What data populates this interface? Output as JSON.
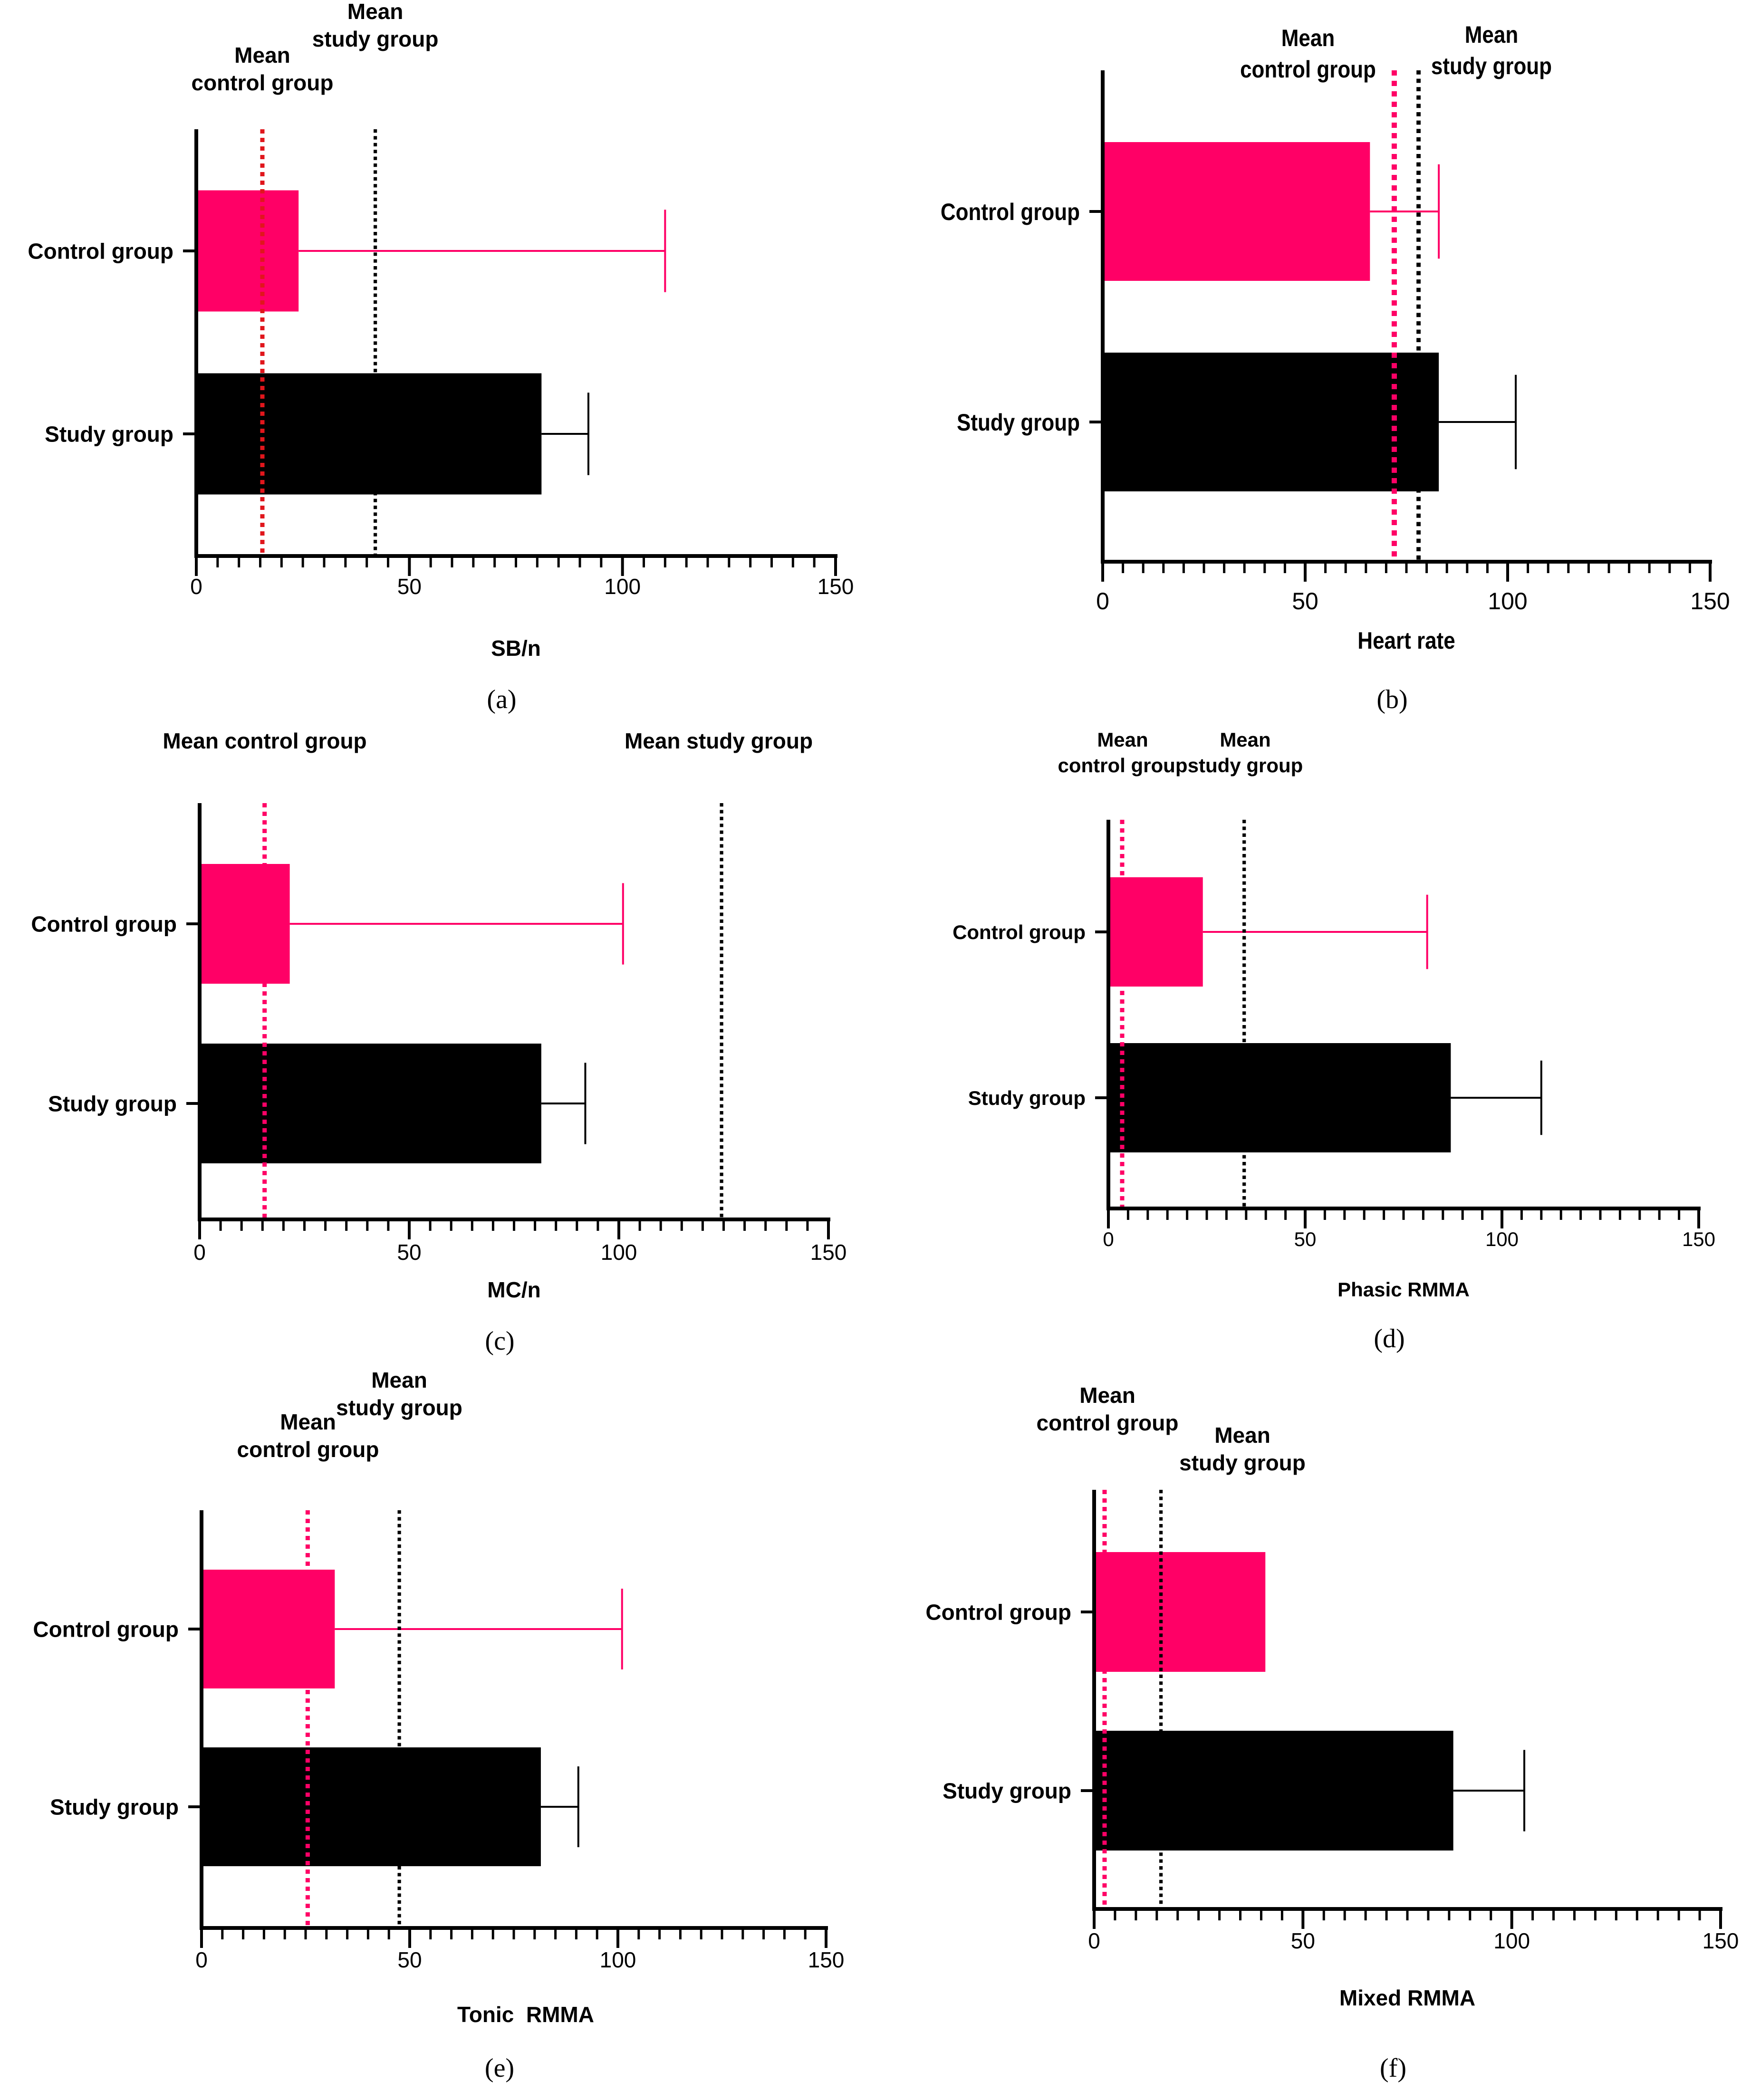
{
  "colors": {
    "control": "#ff0066",
    "study": "#000000",
    "control_mean_a": "#e0161c",
    "control_mean": "#ff0066",
    "study_mean": "#000000"
  },
  "chart_data": [
    {
      "type": "bar",
      "orientation": "horizontal",
      "panel": "(a)",
      "categories": [
        "Control group",
        "Study group"
      ],
      "values": [
        24,
        81
      ],
      "error_upper": [
        110,
        92
      ],
      "xlabel": "SB/n",
      "xlim": [
        0,
        150
      ],
      "xticks": [
        "0",
        "50",
        "100",
        "150"
      ],
      "mean_control": 15.5,
      "mean_study": 42,
      "mean_control_label": [
        "Mean",
        "control group"
      ],
      "mean_study_label": [
        "Mean",
        "study group"
      ]
    },
    {
      "type": "bar",
      "orientation": "horizontal",
      "panel": "(b)",
      "categories": [
        "Control group",
        "Study group"
      ],
      "values": [
        66,
        83
      ],
      "error_upper": [
        83,
        102
      ],
      "xlabel": "Heart rate",
      "xlim": [
        0,
        150
      ],
      "xticks": [
        "0",
        "50",
        "100",
        "150"
      ],
      "mean_control": 72,
      "mean_study": 78,
      "mean_control_label": [
        "Mean",
        "control group"
      ],
      "mean_study_label": [
        "Mean",
        "study group"
      ]
    },
    {
      "type": "bar",
      "orientation": "horizontal",
      "panel": "(c)",
      "categories": [
        "Control group",
        "Study group"
      ],
      "values": [
        21.5,
        81.5
      ],
      "error_upper": [
        101,
        92
      ],
      "xlabel": "MC/n",
      "xlim": [
        0,
        150
      ],
      "xticks": [
        "0",
        "50",
        "100",
        "150"
      ],
      "mean_control": 15.5,
      "mean_study": 124.5,
      "mean_control_label": [
        "Mean control group"
      ],
      "mean_study_label": [
        "Mean study group"
      ]
    },
    {
      "type": "bar",
      "orientation": "horizontal",
      "panel": "(d)",
      "categories": [
        "Control group",
        "Study group"
      ],
      "values": [
        24,
        87
      ],
      "error_upper": [
        81,
        110
      ],
      "xlabel": "Phasic RMMA",
      "xlim": [
        0,
        150
      ],
      "xticks": [
        "0",
        "50",
        "100",
        "150"
      ],
      "mean_control": 3.5,
      "mean_study": 34.5,
      "mean_control_label": [
        "Mean",
        "control group"
      ],
      "mean_study_label": [
        "Mean",
        "study group"
      ]
    },
    {
      "type": "bar",
      "orientation": "horizontal",
      "panel": "(e)",
      "categories": [
        "Control group",
        "Study group"
      ],
      "values": [
        32,
        81.5
      ],
      "error_upper": [
        101,
        90.5
      ],
      "xlabel": "Tonic  RMMA",
      "xlim": [
        0,
        150
      ],
      "xticks": [
        "0",
        "50",
        "100",
        "150"
      ],
      "mean_control": 25.5,
      "mean_study": 47.5,
      "mean_control_label": [
        "Mean",
        "control group"
      ],
      "mean_study_label": [
        "Mean",
        "study group"
      ]
    },
    {
      "type": "bar",
      "orientation": "horizontal",
      "panel": "(f)",
      "categories": [
        "Control group",
        "Study group"
      ],
      "values": [
        41,
        86
      ],
      "error_upper": [
        41,
        103
      ],
      "xlabel": "Mixed RMMA",
      "xlim": [
        0,
        150
      ],
      "xticks": [
        "0",
        "50",
        "100",
        "150"
      ],
      "mean_control": 2.5,
      "mean_study": 16,
      "mean_control_label": [
        "Mean",
        "control group"
      ],
      "mean_study_label": [
        "Mean",
        "study group"
      ]
    }
  ]
}
